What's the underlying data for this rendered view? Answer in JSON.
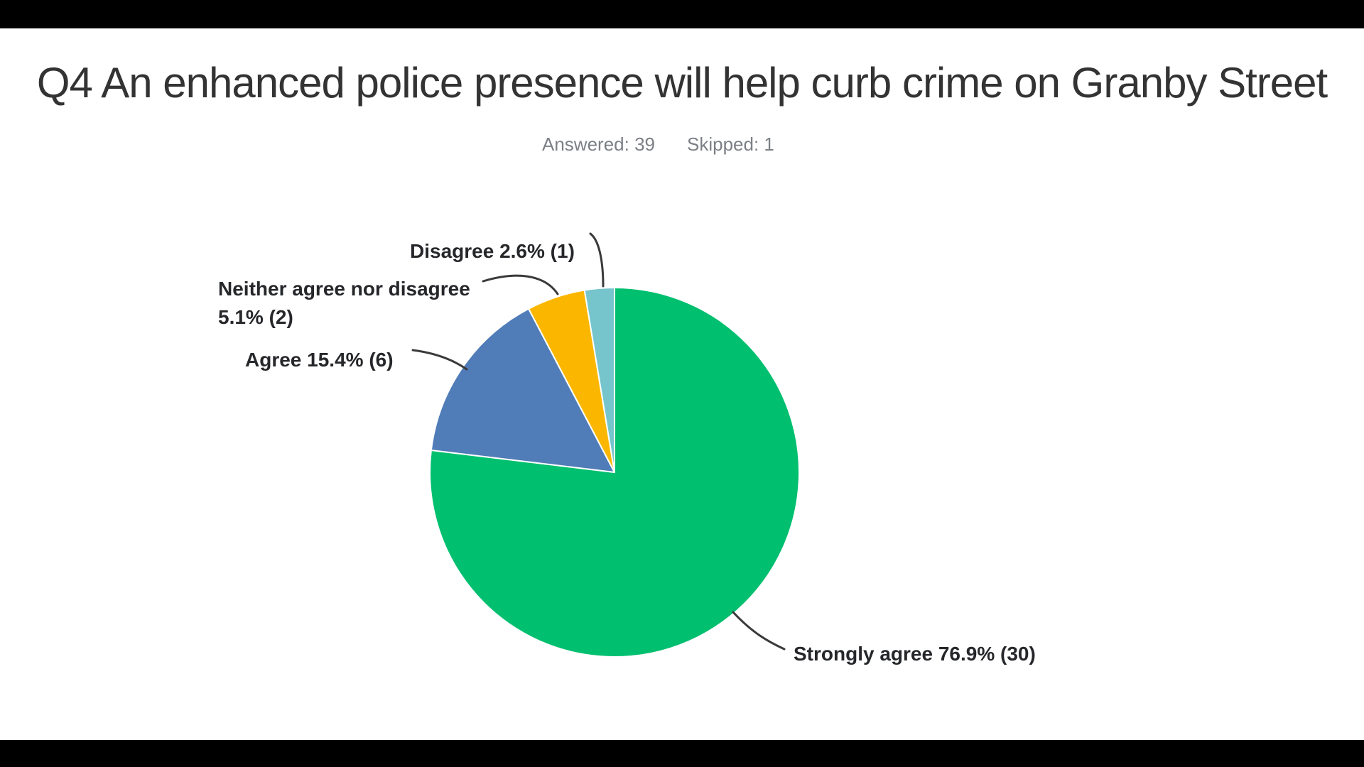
{
  "header": {
    "title": "Q4 An enhanced police presence will help curb crime on Granby Street",
    "answered": "Answered: 39",
    "skipped": "Skipped: 1"
  },
  "chart_data": {
    "type": "pie",
    "title": "Q4 An enhanced police presence will help curb crime on Granby Street",
    "answered_count": 39,
    "skipped_count": 1,
    "direction": "clockwise",
    "start_angle_deg": 0,
    "legend_position": "none",
    "slices": [
      {
        "label": "Strongly agree",
        "pct": 76.9,
        "count": 30,
        "value_text": "76.9% (30)",
        "color": "#00BF6F"
      },
      {
        "label": "Agree",
        "pct": 15.4,
        "count": 6,
        "value_text": "15.4% (6)",
        "color": "#507CB8"
      },
      {
        "label": "Neither agree nor disagree",
        "pct": 5.1,
        "count": 2,
        "value_text": "5.1% (2)",
        "color": "#FBB700"
      },
      {
        "label": "Disagree",
        "pct": 2.6,
        "count": 1,
        "value_text": "2.6% (1)",
        "color": "#76C5CC"
      }
    ],
    "colors": {
      "strongly_agree": "#00BF6F",
      "agree": "#507CB8",
      "neither": "#FBB700",
      "disagree": "#76C5CC",
      "leader_line": "#3a3a3a",
      "title_text": "#333333",
      "stats_text": "#7c8086",
      "label_text": "#26272a"
    }
  }
}
